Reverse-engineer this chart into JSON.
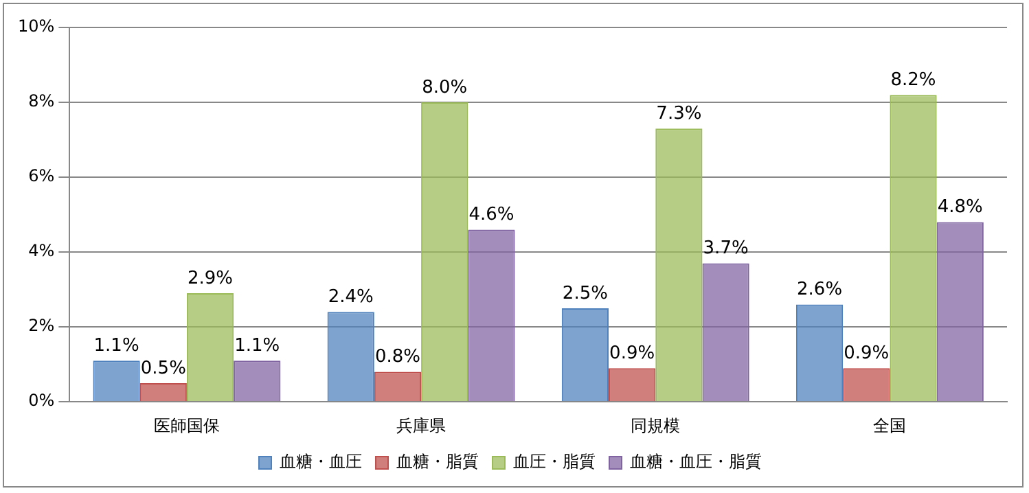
{
  "chart_data": {
    "type": "bar",
    "categories": [
      "医師国保",
      "兵庫県",
      "同規模",
      "全国"
    ],
    "series": [
      {
        "name": "血糖・血圧",
        "color": "#4f81bd",
        "values": [
          1.1,
          2.4,
          2.5,
          2.6
        ],
        "value_labels": [
          "1.1%",
          "2.4%",
          "2.5%",
          "2.6%"
        ]
      },
      {
        "name": "血糖・脂質",
        "color": "#c0504d",
        "values": [
          0.5,
          0.8,
          0.9,
          0.9
        ],
        "value_labels": [
          "0.5%",
          "0.8%",
          "0.9%",
          "0.9%"
        ]
      },
      {
        "name": "血圧・脂質",
        "color": "#9bbb59",
        "values": [
          2.9,
          8.0,
          7.3,
          8.2
        ],
        "value_labels": [
          "2.9%",
          "8.0%",
          "7.3%",
          "8.2%"
        ]
      },
      {
        "name": "血糖・血圧・脂質",
        "color": "#8064a2",
        "values": [
          1.1,
          4.6,
          3.7,
          4.8
        ],
        "value_labels": [
          "1.1%",
          "4.6%",
          "3.7%",
          "4.8%"
        ]
      }
    ],
    "ylim": [
      0,
      10
    ],
    "yticks": [
      {
        "value": 0,
        "label": "0%"
      },
      {
        "value": 2,
        "label": "2%"
      },
      {
        "value": 4,
        "label": "4%"
      },
      {
        "value": 6,
        "label": "6%"
      },
      {
        "value": 8,
        "label": "8%"
      },
      {
        "value": 10,
        "label": "10%"
      }
    ],
    "grid": "y",
    "legend": "bottom"
  }
}
